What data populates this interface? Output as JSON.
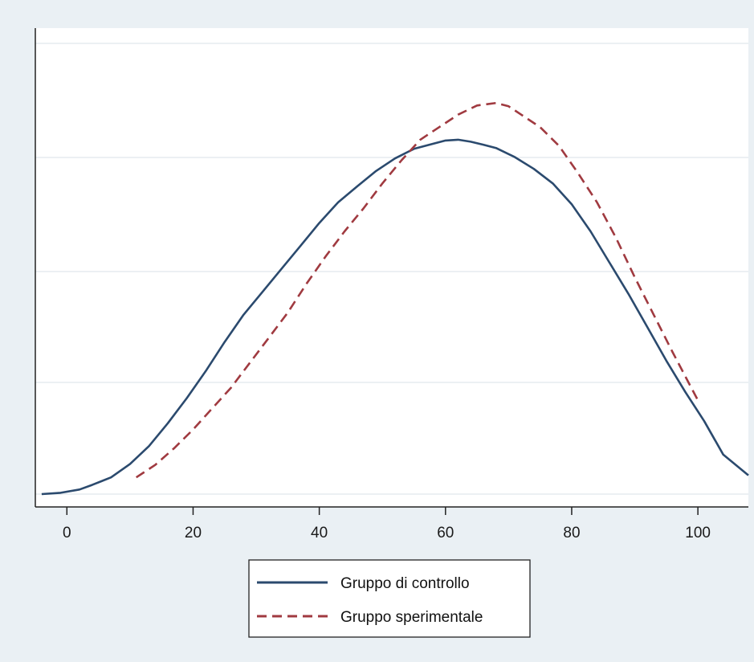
{
  "chart_data": {
    "type": "line",
    "title": "",
    "xlabel": "",
    "ylabel": "",
    "xlim": [
      -5,
      108
    ],
    "ylim": [
      0,
      1
    ],
    "x_ticks": [
      0,
      20,
      40,
      60,
      80,
      100
    ],
    "x_tick_labels": [
      "0",
      "20",
      "40",
      "60",
      "80",
      "100"
    ],
    "grid": true,
    "legend_placement": "bottom",
    "series": [
      {
        "name": "Gruppo di controllo",
        "color": "#2b4a6e",
        "dash": "solid",
        "x": [
          -4,
          -1,
          2,
          4,
          7,
          10,
          13,
          16,
          19,
          22,
          25,
          28,
          31,
          34,
          37,
          40,
          43,
          46,
          49,
          52,
          55,
          58,
          60,
          62,
          64,
          66,
          68,
          71,
          74,
          77,
          80,
          83,
          86,
          89,
          92,
          95,
          98,
          101,
          104,
          108
        ],
        "y": [
          0.0,
          0.003,
          0.011,
          0.022,
          0.04,
          0.072,
          0.115,
          0.17,
          0.23,
          0.295,
          0.365,
          0.43,
          0.485,
          0.54,
          0.595,
          0.65,
          0.7,
          0.738,
          0.775,
          0.805,
          0.828,
          0.84,
          0.848,
          0.85,
          0.845,
          0.838,
          0.83,
          0.808,
          0.78,
          0.745,
          0.695,
          0.63,
          0.555,
          0.48,
          0.4,
          0.32,
          0.245,
          0.175,
          0.095,
          0.045
        ]
      },
      {
        "name": "Gruppo sperimentale",
        "color": "#a03a40",
        "dash": "dashed",
        "x": [
          11,
          14,
          17,
          20,
          23,
          26,
          29,
          32,
          35,
          38,
          41,
          44,
          47,
          50,
          53,
          56,
          59,
          62,
          65,
          68,
          70,
          72,
          75,
          78,
          81,
          84,
          87,
          90,
          93,
          96,
          100
        ],
        "y": [
          0.04,
          0.07,
          0.11,
          0.155,
          0.205,
          0.255,
          0.315,
          0.375,
          0.435,
          0.505,
          0.57,
          0.63,
          0.685,
          0.745,
          0.8,
          0.85,
          0.88,
          0.91,
          0.932,
          0.938,
          0.93,
          0.91,
          0.88,
          0.835,
          0.77,
          0.7,
          0.615,
          0.52,
          0.43,
          0.34,
          0.225
        ]
      }
    ]
  }
}
